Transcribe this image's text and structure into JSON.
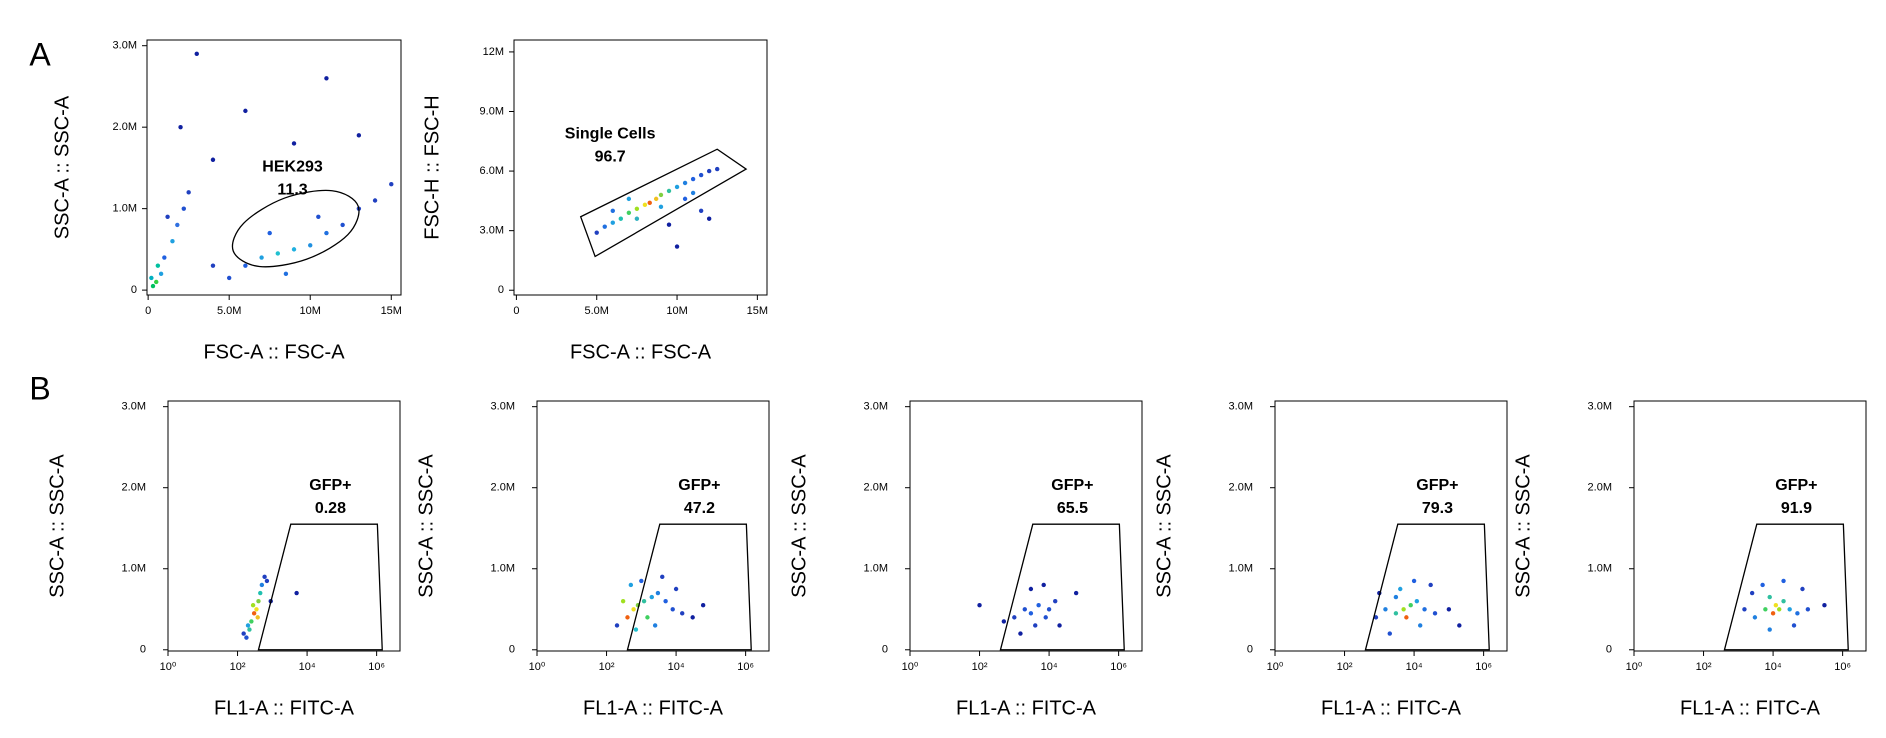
{
  "panel_labels": [
    "A",
    "B"
  ],
  "chart_data": [
    {
      "type": "scatter",
      "xlabel": "FSC-A :: FSC-A",
      "ylabel": "SSC-A :: SSC-A",
      "xlim": [
        -70000.0,
        15600000.0
      ],
      "ylim": [
        -60000.0,
        3070000.0
      ],
      "xticks": [
        0,
        {
          "value": 5000000,
          "label": "5.0M"
        },
        {
          "value": 10000000,
          "label": "10M"
        },
        {
          "value": 15000000,
          "label": "15M"
        }
      ],
      "yticks": [
        0,
        {
          "value": 1000000,
          "label": "1.0M"
        },
        {
          "value": 2000000,
          "label": "2.0M"
        },
        {
          "value": 3000000,
          "label": "3.0M"
        }
      ],
      "points": {
        "x": [
          300000.0,
          500000.0,
          200000.0,
          800000.0,
          1000000.0,
          1500000.0,
          1800000.0,
          2200000.0,
          2500000.0,
          1200000.0,
          600000.0,
          6000000.0,
          7000000.0,
          8000000.0,
          9000000.0,
          10000000.0,
          11000000.0,
          12000000.0,
          13000000.0,
          14000000.0,
          15000000.0,
          8500000.0,
          10500000.0,
          7500000.0,
          5000000.0,
          4000000.0,
          3000000.0,
          6000000.0,
          9000000.0,
          11000000.0,
          4000000.0,
          13000000.0,
          2000000.0
        ],
        "y": [
          50000.0,
          100000.0,
          150000.0,
          200000.0,
          400000.0,
          600000.0,
          800000.0,
          1000000.0,
          1200000.0,
          900000.0,
          300000.0,
          300000.0,
          400000.0,
          450000.0,
          500000.0,
          550000.0,
          700000.0,
          800000.0,
          1000000.0,
          1100000.0,
          1300000.0,
          200000.0,
          900000.0,
          700000.0,
          150000.0,
          300000.0,
          2900000.0,
          2200000.0,
          1800000.0,
          2600000.0,
          1600000.0,
          1900000.0,
          2000000.0
        ],
        "colors": [
          "#00c060",
          "#30d040",
          "#00b0c0",
          "#20a0e0",
          "#2060e0",
          "#20a0e0",
          "#3070e0",
          "#2050d0",
          "#2040c0",
          "#2040c0",
          "#00c0a0",
          "#2060e0",
          "#20a0e0",
          "#20c0d0",
          "#20b0e0",
          "#2090e0",
          "#2070e0",
          "#2050d0",
          "#2040c0",
          "#2040c0",
          "#2040c0",
          "#2070e0",
          "#2050d0",
          "#2060e0",
          "#2050d0",
          "#2040c0",
          "#1020a0",
          "#1020a0",
          "#1020a0",
          "#1020a0",
          "#1020a0",
          "#1020a0",
          "#1020a0"
        ]
      },
      "gate": {
        "name": "HEK293",
        "value": 11.3,
        "shape": "ellipse",
        "x": [
          12960000.0,
          12320000.0,
          9790000.0,
          6860000.0,
          5250000.0,
          5890000.0,
          8420000.0,
          11350000.0
        ],
        "y": [
          1030000.0,
          680000.0,
          380000.0,
          290000.0,
          480000.0,
          820000.0,
          1130000.0,
          1220000.0
        ]
      }
    },
    {
      "type": "scatter",
      "xlabel": "FSC-A :: FSC-A",
      "ylabel": "FSC-H :: FSC-H",
      "xlim": [
        -150000.0,
        15600000.0
      ],
      "ylim": [
        -240000.0,
        12600000.0
      ],
      "xticks": [
        0,
        {
          "value": 5000000,
          "label": "5.0M"
        },
        {
          "value": 10000000,
          "label": "10M"
        },
        {
          "value": 15000000,
          "label": "15M"
        }
      ],
      "yticks": [
        0,
        {
          "value": 3000000,
          "label": "3.0M"
        },
        {
          "value": 6000000,
          "label": "6.0M"
        },
        {
          "value": 9000000,
          "label": "9.0M"
        },
        {
          "value": 12000000,
          "label": "12M"
        }
      ],
      "points": {
        "x": [
          5000000.0,
          5500000.0,
          6000000.0,
          6500000.0,
          7000000.0,
          7500000.0,
          8000000.0,
          8300000.0,
          8700000.0,
          9000000.0,
          9500000.0,
          10000000.0,
          10500000.0,
          11000000.0,
          11500000.0,
          12000000.0,
          12500000.0,
          7500000.0,
          9000000.0,
          10500000.0,
          11500000.0,
          12000000.0,
          9500000.0,
          7000000.0,
          6000000.0,
          10000000.0,
          11000000.0
        ],
        "y": [
          2900000.0,
          3200000.0,
          3400000.0,
          3600000.0,
          3900000.0,
          4100000.0,
          4300000.0,
          4400000.0,
          4600000.0,
          4800000.0,
          5000000.0,
          5200000.0,
          5400000.0,
          5600000.0,
          5800000.0,
          6000000.0,
          6100000.0,
          3600000.0,
          4200000.0,
          4600000.0,
          4000000.0,
          3600000.0,
          3300000.0,
          4600000.0,
          4000000.0,
          2200000.0,
          4900000.0
        ],
        "colors": [
          "#2040c0",
          "#2070e0",
          "#20a0e0",
          "#20c0b0",
          "#40d060",
          "#a0e020",
          "#f0e020",
          "#f06010",
          "#f0c020",
          "#80d040",
          "#30c0a0",
          "#20a0e0",
          "#2080e0",
          "#2060e0",
          "#2050d0",
          "#2040c0",
          "#2040c0",
          "#30b0c0",
          "#20a0e0",
          "#2060e0",
          "#2040c0",
          "#1020a0",
          "#1020a0",
          "#20a0e0",
          "#2070e0",
          "#1020a0",
          "#2080e0"
        ]
      },
      "gate": {
        "name": "Single Cells",
        "value": 96.7,
        "shape": "polygon",
        "x": [
          4000000.0,
          12500000.0,
          14300000.0,
          4900000.0
        ],
        "y": [
          3700000.0,
          7100000.0,
          6100000.0,
          1700000.0
        ]
      }
    },
    {
      "type": "scatter",
      "xscale": "log",
      "xlabel": "FL1-A :: FITC-A",
      "ylabel": "SSC-A :: SSC-A",
      "xlim": [
        1,
        4700000
      ],
      "ylim": [
        -15000.0,
        3070000.0
      ],
      "xticks": [
        {
          "value": 1,
          "label": "10⁰"
        },
        {
          "value": 100,
          "label": "10²"
        },
        {
          "value": 10000,
          "label": "10⁴"
        },
        {
          "value": 1000000,
          "label": "10⁶"
        }
      ],
      "yticks": [
        0,
        {
          "value": 1000000,
          "label": "1.0M"
        },
        {
          "value": 2000000,
          "label": "2.0M"
        },
        {
          "value": 3000000,
          "label": "3.0M"
        }
      ],
      "points": {
        "x": [
          150,
          200,
          250,
          300,
          350,
          400,
          450,
          500,
          600,
          280,
          220,
          380,
          700,
          180,
          900,
          5000
        ],
        "y": [
          200000.0,
          300000.0,
          350000.0,
          450000.0,
          500000.0,
          600000.0,
          700000.0,
          800000.0,
          900000.0,
          550000.0,
          250000.0,
          400000.0,
          850000.0,
          150000.0,
          600000.0,
          700000.0
        ],
        "colors": [
          "#2040c0",
          "#20a0e0",
          "#40d060",
          "#f06010",
          "#f0e020",
          "#80d040",
          "#20c0b0",
          "#2080e0",
          "#2040c0",
          "#a0e020",
          "#30c0a0",
          "#f0c020",
          "#2040c0",
          "#2050d0",
          "#1020a0",
          "#1020a0"
        ]
      },
      "gate": {
        "name": "GFP+",
        "value": 0.28,
        "shape": "polygon",
        "x": [
          3400,
          1050000,
          1450000,
          400
        ],
        "y": [
          1550000.0,
          1550000.0,
          0,
          0
        ]
      }
    },
    {
      "type": "scatter",
      "xscale": "log",
      "xlabel": "FL1-A :: FITC-A",
      "ylabel": "SSC-A :: SSC-A",
      "xlim": [
        1,
        4700000
      ],
      "ylim": [
        -15000.0,
        3070000.0
      ],
      "xticks": [
        {
          "value": 1,
          "label": "10⁰"
        },
        {
          "value": 100,
          "label": "10²"
        },
        {
          "value": 10000,
          "label": "10⁴"
        },
        {
          "value": 1000000,
          "label": "10⁶"
        }
      ],
      "yticks": [
        0,
        {
          "value": 1000000,
          "label": "1.0M"
        },
        {
          "value": 2000000,
          "label": "2.0M"
        },
        {
          "value": 3000000,
          "label": "3.0M"
        }
      ],
      "points": {
        "x": [
          200,
          400,
          600,
          800,
          1200,
          2000,
          3000,
          5000,
          8000,
          15000,
          30000,
          500,
          1000,
          2500,
          300,
          1500,
          700,
          4000,
          60000,
          10000
        ],
        "y": [
          300000.0,
          400000.0,
          500000.0,
          550000.0,
          600000.0,
          650000.0,
          700000.0,
          600000.0,
          500000.0,
          450000.0,
          400000.0,
          800000.0,
          850000.0,
          300000.0,
          600000.0,
          400000.0,
          250000.0,
          900000.0,
          550000.0,
          750000.0
        ],
        "colors": [
          "#2040c0",
          "#f06010",
          "#f0e020",
          "#80d040",
          "#30c0a0",
          "#20a0e0",
          "#2080e0",
          "#2060e0",
          "#2050d0",
          "#2040c0",
          "#1020a0",
          "#20a0e0",
          "#2060e0",
          "#2080e0",
          "#a0e020",
          "#40d060",
          "#20c0d0",
          "#2040c0",
          "#1020a0",
          "#2040c0"
        ]
      },
      "gate": {
        "name": "GFP+",
        "value": 47.2,
        "shape": "polygon",
        "x": [
          3400,
          1050000,
          1450000,
          400
        ],
        "y": [
          1550000.0,
          1550000.0,
          0,
          0
        ]
      }
    },
    {
      "type": "scatter",
      "xscale": "log",
      "xlabel": "FL1-A :: FITC-A",
      "ylabel": "SSC-A :: SSC-A",
      "xlim": [
        1,
        4700000
      ],
      "ylim": [
        -15000.0,
        3070000.0
      ],
      "xticks": [
        {
          "value": 1,
          "label": "10⁰"
        },
        {
          "value": 100,
          "label": "10²"
        },
        {
          "value": 10000,
          "label": "10⁴"
        },
        {
          "value": 1000000,
          "label": "10⁶"
        }
      ],
      "yticks": [
        0,
        {
          "value": 1000000,
          "label": "1.0M"
        },
        {
          "value": 2000000,
          "label": "2.0M"
        },
        {
          "value": 3000000,
          "label": "3.0M"
        }
      ],
      "points": {
        "x": [
          100,
          500,
          1000,
          2000,
          3000,
          5000,
          8000,
          15000,
          3000,
          1500,
          7000,
          20000,
          60000,
          4000,
          10000
        ],
        "y": [
          550000.0,
          350000.0,
          400000.0,
          500000.0,
          450000.0,
          550000.0,
          400000.0,
          600000.0,
          750000.0,
          200000.0,
          800000.0,
          300000.0,
          700000.0,
          300000.0,
          500000.0
        ],
        "colors": [
          "#1020a0",
          "#1020a0",
          "#2040c0",
          "#2050d0",
          "#2060e0",
          "#2060e0",
          "#2050d0",
          "#2040c0",
          "#1020a0",
          "#1020a0",
          "#1020a0",
          "#1020a0",
          "#1020a0",
          "#2040c0",
          "#2050d0"
        ]
      },
      "gate": {
        "name": "GFP+",
        "value": 65.5,
        "shape": "polygon",
        "x": [
          3400,
          1050000,
          1450000,
          400
        ],
        "y": [
          1550000.0,
          1550000.0,
          0,
          0
        ]
      }
    },
    {
      "type": "scatter",
      "xscale": "log",
      "xlabel": "FL1-A :: FITC-A",
      "ylabel": "SSC-A :: SSC-A",
      "xlim": [
        1,
        4700000
      ],
      "ylim": [
        -15000.0,
        3070000.0
      ],
      "xticks": [
        {
          "value": 1,
          "label": "10⁰"
        },
        {
          "value": 100,
          "label": "10²"
        },
        {
          "value": 10000,
          "label": "10⁴"
        },
        {
          "value": 1000000,
          "label": "10⁶"
        }
      ],
      "yticks": [
        0,
        {
          "value": 1000000,
          "label": "1.0M"
        },
        {
          "value": 2000000,
          "label": "2.0M"
        },
        {
          "value": 3000000,
          "label": "3.0M"
        }
      ],
      "points": {
        "x": [
          800,
          1500,
          3000,
          5000,
          6000,
          8000,
          12000,
          20000,
          40000,
          100000,
          2000,
          10000,
          30000,
          4000,
          15000,
          3000,
          200000,
          1000
        ],
        "y": [
          400000.0,
          500000.0,
          450000.0,
          500000.0,
          400000.0,
          550000.0,
          600000.0,
          500000.0,
          450000.0,
          500000.0,
          200000.0,
          850000.0,
          800000.0,
          750000.0,
          300000.0,
          650000.0,
          300000.0,
          700000.0
        ],
        "colors": [
          "#2040c0",
          "#2080e0",
          "#30c0a0",
          "#a0e020",
          "#f06010",
          "#40d060",
          "#20a0e0",
          "#2070e0",
          "#2050d0",
          "#1020a0",
          "#2050d0",
          "#2060e0",
          "#2040c0",
          "#20a0e0",
          "#2080e0",
          "#2080e0",
          "#1020a0",
          "#1020a0"
        ]
      },
      "gate": {
        "name": "GFP+",
        "value": 79.3,
        "shape": "polygon",
        "x": [
          3400,
          1050000,
          1450000,
          400
        ],
        "y": [
          1550000.0,
          1550000.0,
          0,
          0
        ]
      }
    },
    {
      "type": "scatter",
      "xscale": "log",
      "xlabel": "FL1-A :: FITC-A",
      "ylabel": "SSC-A :: SSC-A",
      "xlim": [
        1,
        4700000
      ],
      "ylim": [
        -15000.0,
        3070000.0
      ],
      "xticks": [
        {
          "value": 1,
          "label": "10⁰"
        },
        {
          "value": 100,
          "label": "10²"
        },
        {
          "value": 10000,
          "label": "10⁴"
        },
        {
          "value": 1000000,
          "label": "10⁶"
        }
      ],
      "yticks": [
        0,
        {
          "value": 1000000,
          "label": "1.0M"
        },
        {
          "value": 2000000,
          "label": "2.0M"
        },
        {
          "value": 3000000,
          "label": "3.0M"
        }
      ],
      "points": {
        "x": [
          1500,
          3000,
          6000,
          10000,
          12000,
          15000,
          20000,
          30000,
          50000,
          100000,
          300000,
          5000,
          20000,
          8000,
          40000,
          2500,
          70000,
          8000
        ],
        "y": [
          500000.0,
          400000.0,
          500000.0,
          450000.0,
          550000.0,
          500000.0,
          600000.0,
          500000.0,
          450000.0,
          500000.0,
          550000.0,
          800000.0,
          850000.0,
          250000.0,
          300000.0,
          700000.0,
          750000.0,
          650000.0
        ],
        "colors": [
          "#2040c0",
          "#2080e0",
          "#40d060",
          "#f06010",
          "#f0e020",
          "#a0e020",
          "#30c0a0",
          "#20a0e0",
          "#2070e0",
          "#2050d0",
          "#1020a0",
          "#2060e0",
          "#2060e0",
          "#2080e0",
          "#2050d0",
          "#2040c0",
          "#2040c0",
          "#30c0a0"
        ]
      },
      "gate": {
        "name": "GFP+",
        "value": 91.9,
        "shape": "polygon",
        "x": [
          3400,
          1050000,
          1450000,
          400
        ],
        "y": [
          1550000.0,
          1550000.0,
          0,
          0
        ]
      }
    }
  ]
}
